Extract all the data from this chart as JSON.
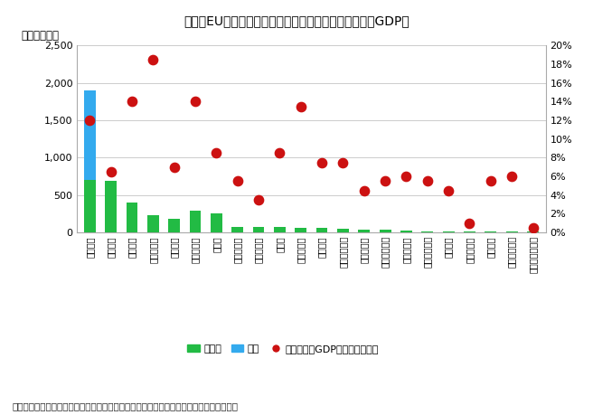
{
  "title": "図表　EU加盟国の復興計画の補助金・融資要請額と対GDP比",
  "ylabel_left": "（億ユーロ）",
  "note": "（注）６月２日時点で計画を未提出のブルガリア、エストニア、マルタ、オランダを除く",
  "legend_labels": [
    "補助金",
    "融資",
    "利用計画対GDP比（右目盛り）"
  ],
  "categories": [
    "イタリア",
    "スペイン",
    "フランス",
    "ポーランド",
    "ギリシャ",
    "ルーマニア",
    "ドイツ",
    "ポルトガル",
    "ハンガリー",
    "チェコ",
    "スロバキア",
    "ベルギー",
    "オーストリア",
    "スロベニア",
    "スウェーデン",
    "リトアニア",
    "フィンランド",
    "ラトビア",
    "デンマーク",
    "キプロス",
    "アイルランド",
    "ルクセンブルク"
  ],
  "grant": [
    700,
    690,
    400,
    230,
    180,
    290,
    255,
    68,
    70,
    70,
    60,
    57,
    50,
    40,
    40,
    25,
    12,
    18,
    10,
    10,
    10,
    10
  ],
  "loan": [
    1900,
    0,
    0,
    90,
    100,
    0,
    0,
    0,
    0,
    0,
    0,
    0,
    0,
    0,
    0,
    0,
    0,
    0,
    0,
    0,
    0,
    0
  ],
  "gdp_ratio": [
    12.0,
    6.5,
    14.0,
    18.5,
    7.0,
    14.0,
    8.5,
    5.5,
    3.5,
    8.5,
    13.5,
    7.5,
    7.5,
    4.5,
    5.5,
    6.0,
    5.5,
    4.5,
    1.0,
    5.5,
    6.0,
    0.5
  ],
  "grant_color": "#22bb44",
  "loan_color": "#33aaee",
  "gdp_color": "#cc1111",
  "background_color": "#ffffff",
  "ylim_left": [
    0,
    2500
  ],
  "ylim_right": [
    0,
    20
  ],
  "yticks_left": [
    0,
    500,
    1000,
    1500,
    2000,
    2500
  ],
  "yticks_right": [
    0,
    2,
    4,
    6,
    8,
    10,
    12,
    14,
    16,
    18,
    20
  ],
  "grid_color": "#cccccc"
}
